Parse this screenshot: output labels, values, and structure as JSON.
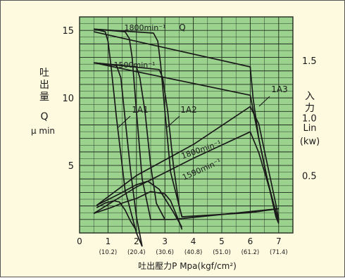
{
  "colors": {
    "background": "#fefadf",
    "plot_area": "#9bd38e",
    "grid": "#1f2a1f",
    "curve": "#1a1a1a"
  },
  "chart_data": {
    "type": "line",
    "xlabel": "吐出壓力P Mpa(kgf/cm²)",
    "xlim": [
      0,
      7.5
    ],
    "x_ticks": [
      0,
      1,
      2,
      3,
      4,
      5,
      6,
      7
    ],
    "x_tick_labels": [
      "0",
      "1",
      "2",
      "3",
      "4",
      "5",
      "6",
      "7"
    ],
    "x_sub_labels": [
      "(10.2)",
      "(20.4)",
      "(30.6)",
      "(40.8)",
      "(51.0)",
      "(61.2)",
      "(71.4)"
    ],
    "left_axis": {
      "label_lines": [
        "吐",
        "出",
        "量",
        "Q",
        "μ min"
      ],
      "lim": [
        0,
        16
      ],
      "ticks": [
        5,
        10,
        15
      ],
      "tick_labels": [
        "5",
        "10",
        "15"
      ]
    },
    "right_axis": {
      "label_lines": [
        "入",
        "力",
        "Lin",
        "(kw)"
      ],
      "lim": [
        0,
        1.88
      ],
      "ticks": [
        0.5,
        1.0,
        1.5
      ],
      "tick_labels": [
        "0.5",
        "1.0",
        "1.5"
      ]
    },
    "annotations": {
      "r1800_flow": "1800min⁻¹",
      "r1500_flow": "1500min⁻¹",
      "q": "Q",
      "a1": "1A1",
      "a2": "1A2",
      "a3": "1A3",
      "r1800_power": "1800min⁻¹",
      "r1590_power": "1590min⁻¹"
    },
    "series": [
      {
        "axis": "left",
        "x": [
          0.5,
          0.9,
          1.0,
          1.1,
          1.3,
          1.6,
          2.0,
          2.2
        ],
        "y": [
          15.1,
          14.9,
          14.2,
          12.5,
          8.5,
          3.2,
          0.0,
          -1.0
        ]
      },
      {
        "axis": "left",
        "x": [
          0.5,
          1.6,
          1.75,
          1.85,
          2.0,
          2.2,
          2.5,
          3.3,
          7.0
        ],
        "y": [
          15.1,
          14.9,
          14.4,
          13.0,
          9.0,
          4.0,
          1.0,
          1.0,
          1.8
        ]
      },
      {
        "axis": "left",
        "x": [
          0.5,
          2.6,
          2.75,
          2.85,
          3.0,
          3.2,
          3.6,
          6.0,
          7.0
        ],
        "y": [
          15.1,
          14.8,
          14.2,
          12.5,
          9.0,
          4.5,
          1.2,
          1.5,
          1.8
        ]
      },
      {
        "axis": "left",
        "x": [
          0.5,
          6.0,
          6.1,
          6.3,
          6.6,
          6.9,
          7.0
        ],
        "y": [
          14.9,
          12.3,
          10.0,
          7.0,
          4.0,
          1.5,
          0.8
        ]
      },
      {
        "axis": "left",
        "x": [
          0.5,
          1.3,
          1.45,
          1.6,
          1.8,
          2.0,
          2.2
        ],
        "y": [
          12.6,
          12.4,
          11.5,
          8.5,
          4.5,
          1.2,
          -1.0
        ]
      },
      {
        "axis": "left",
        "x": [
          0.5,
          2.0,
          2.12,
          2.3,
          2.5,
          2.7,
          3.0
        ],
        "y": [
          12.6,
          12.3,
          11.5,
          9.0,
          5.0,
          2.2,
          1.0
        ]
      },
      {
        "axis": "left",
        "x": [
          0.5,
          2.8,
          2.92,
          3.1,
          3.3,
          3.5,
          3.6
        ],
        "y": [
          12.6,
          12.1,
          11.5,
          9.0,
          5.0,
          2.0,
          1.2
        ]
      },
      {
        "axis": "left",
        "x": [
          0.5,
          6.0,
          6.3,
          6.6,
          6.9,
          7.0
        ],
        "y": [
          12.6,
          10.2,
          7.0,
          4.0,
          1.2,
          0.7
        ]
      },
      {
        "axis": "right",
        "x": [
          0.6,
          0.9,
          1.2,
          1.4,
          1.6,
          1.8,
          2.0
        ],
        "y": [
          0.22,
          0.26,
          0.28,
          0.27,
          0.2,
          0.1,
          0.02
        ]
      },
      {
        "axis": "right",
        "x": [
          0.5,
          1.1,
          1.5,
          2.0,
          2.5,
          3.0,
          3.2,
          3.5,
          3.6
        ],
        "y": [
          0.17,
          0.22,
          0.26,
          0.3,
          0.36,
          0.34,
          0.28,
          0.1,
          0.03
        ]
      },
      {
        "axis": "right",
        "x": [
          0.6,
          1.4,
          2.0,
          2.4,
          2.8,
          3.0,
          3.3,
          3.6
        ],
        "y": [
          0.24,
          0.34,
          0.42,
          0.45,
          0.38,
          0.3,
          0.18,
          0.05
        ]
      },
      {
        "axis": "right",
        "x": [
          0.5,
          2.0,
          4.0,
          6.0,
          6.3,
          6.6,
          7.0
        ],
        "y": [
          0.17,
          0.4,
          0.65,
          0.88,
          0.7,
          0.45,
          0.1
        ]
      },
      {
        "axis": "right",
        "x": [
          0.6,
          2.0,
          4.0,
          6.0,
          6.3,
          6.6,
          6.9,
          7.0
        ],
        "y": [
          0.24,
          0.5,
          0.77,
          1.1,
          0.95,
          0.6,
          0.25,
          0.12
        ]
      }
    ]
  }
}
